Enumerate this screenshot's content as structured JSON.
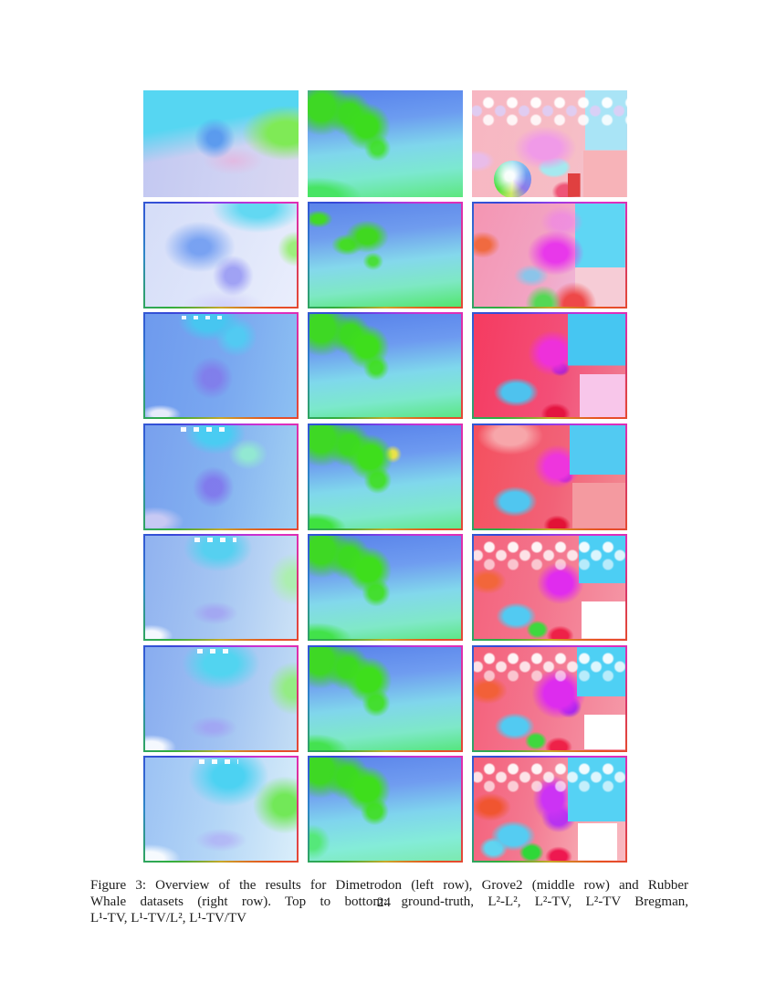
{
  "page": {
    "background": "#ffffff",
    "page_number": "24",
    "caption": {
      "lines": [
        "Figure 3: Overview of the results for Dimetrodon (left row), Grove2 (middle row) and Rubber",
        "Whale datasets (right row). Top to bottom: ground-truth, L²-L², L²-TV, L²-TV Bregman,",
        "L¹-TV, L¹-TV/L², L¹-TV/TV"
      ]
    }
  },
  "figure": {
    "columns": [
      "Dimetrodon",
      "Grove2",
      "Rubber Whale"
    ],
    "rows": [
      "ground-truth",
      "L²-L²",
      "L²-TV",
      "L²-TV Bregman",
      "L¹-TV",
      "L¹-TV/L²",
      "L¹-TV/TV"
    ],
    "frame_gradient": "conic-gradient(from 0deg, #8a3ce8 0deg, #e02cc8 45deg, #d8356e 90deg, #e85020 135deg, #c8a828 180deg, #2fae3e 225deg, #2e86c8 270deg, #3448d8 315deg, #8a3ce8 360deg)",
    "cells": [
      {
        "name": "flow-image-dimetrodon-ground-truth",
        "dataset": "Dimetrodon",
        "method": "ground-truth",
        "framed": false,
        "bg": "radial-gradient(circle at 46% 45%, rgba(88,152,238,0.95) 0%, rgba(88,152,238,0.95) 7%, rgba(88,152,238,0) 20%), radial-gradient(ellipse 42% 38% at 92% 40%, #7fea56 0%, #7fea56 28%, rgba(127,234,86,0) 68%), linear-gradient(170deg, #56d6f2 32%, rgba(86,214,242,0) 55%), radial-gradient(ellipse 30% 20% at 58% 66%, rgba(238,170,214,0.6) 0%, rgba(238,170,214,0) 65%), linear-gradient(100deg, #c2c7f1 0%, #cdd1f3 50%, #dad7f2 100%)",
        "overlays": []
      },
      {
        "name": "flow-image-grove2-ground-truth",
        "dataset": "Grove2",
        "method": "ground-truth",
        "framed": false,
        "bg": "radial-gradient(circle at 38% 34%, #3cdc1e 0%, #3cdc1e 9%, rgba(60,220,30,0) 20%), radial-gradient(circle at 27% 22%, #3cd922 0%, #3cd922 7%, rgba(60,217,34,0) 16%), radial-gradient(circle at 9% 16%, #3ed824 0%, #3ed824 8%, rgba(62,216,36,0) 17%), radial-gradient(circle at 45% 54%, #46e03c 0%, #46e03c 6%, rgba(70,224,60,0) 13%), radial-gradient(ellipse 40% 26% at 6% 100%, #47e463 0%, #47e463 35%, rgba(71,228,99,0) 72%), linear-gradient(174deg, #5580ec 0%, #6c9cf0 30%, #7fd6ec 54%, #7ce8d0 76%, #5ce77e 100%)",
        "overlays": []
      },
      {
        "name": "flow-image-rubberwhale-ground-truth",
        "dataset": "Rubber Whale",
        "method": "ground-truth",
        "framed": false,
        "bg": "radial-gradient(circle, rgba(255,255,255,0.95) 0%, rgba(255,255,255,0.95) 32%, rgba(255,255,255,0) 44%) 5px 5px/26px 17px repeat-x, radial-gradient(circle, rgba(222,206,246,0.9) 0%, rgba(222,206,246,0.9) 32%, rgba(222,206,246,0) 44%) 18px 14px/26px 17px repeat-x, radial-gradient(circle, rgba(255,255,255,0.85) 0%, rgba(255,255,255,0.85) 32%, rgba(255,255,255,0) 44%) 5px 24px/26px 17px repeat-x, linear-gradient(#a9e4f6, #a9e4f6) 100% 0/27% 56% no-repeat, linear-gradient(#f7b3b8, #f7b3b8) 100% 100%/28% 44% no-repeat, linear-gradient(#e04040, #e04040) 67% 100%/8% 22% no-repeat, radial-gradient(ellipse 26% 26% at 47% 54%, #f09ae8 0%, #f09ae8 38%, rgba(240,154,232,0) 78%), radial-gradient(ellipse 15% 14% at 53% 72%, #a5e9ef 0%, #a5e9ef 52%, rgba(165,233,239,0) 72%), radial-gradient(ellipse 11% 13% at 60% 95%, #ee5577 0%, #ee5577 48%, rgba(238,85,119,0) 78%), radial-gradient(ellipse 15% 13% at 3% 66%, #e9bce9 0%, #e9bce9 45%, rgba(233,188,233,0) 78%), linear-gradient(100deg, #f7b6c2 0%, #f6bdc5 60%, #f3c4d0 100%)",
        "overlays": [
          {
            "name": "flow-color-wheel",
            "style": "left:14%; top:66%; width:24%; height:35%; border-radius:50%; background: radial-gradient(circle at 42% 42%, rgba(255,255,255,0.95) 0%, rgba(255,255,255,0.95) 15%, rgba(255,255,255,0) 55%), conic-gradient(from 0deg, #9adef0 0deg, #6f9bf0 70deg, #8f7ae8 130deg, #cde86a 185deg, #55e03a 235deg, #3fe05a 275deg, #8fe8c8 325deg, #9adef0 360deg)"
          }
        ]
      },
      {
        "name": "flow-image-dimetrodon-l2-l2",
        "dataset": "Dimetrodon",
        "method": "L²-L²",
        "framed": true,
        "bg": "radial-gradient(ellipse 42% 34% at 74% 4%, #62d8f2 0%, #62d8f2 28%, rgba(98,216,242,0) 72%), radial-gradient(ellipse 38% 40% at 36% 42%, rgba(96,146,240,0.8) 0%, rgba(96,146,240,0.8) 18%, rgba(96,146,240,0) 62%), radial-gradient(circle at 58% 70%, rgba(132,132,242,0.7) 0%, rgba(132,132,242,0.7) 7%, rgba(132,132,242,0) 18%), radial-gradient(circle at 99% 44%, #9dee7c 0%, #9dee7c 4%, rgba(157,238,124,0) 11%), radial-gradient(ellipse 40% 24% at 52% 100%, rgba(192,184,248,0.5) 0%, rgba(192,184,248,0) 68%), linear-gradient(115deg, #d5ddf8 0%, #dee5fa 50%, #eaeefc 100%)",
        "overlays": []
      },
      {
        "name": "flow-image-grove2-l2-l2",
        "dataset": "Grove2",
        "method": "L²-L²",
        "framed": true,
        "bg": "radial-gradient(ellipse 20% 22% at 38% 32%, #40d820 0%, #40d820 32%, rgba(64,216,32,0) 72%), radial-gradient(ellipse 15% 15% at 25% 40%, #44dc26 0%, #44dc26 30%, rgba(68,220,38,0) 70%), radial-gradient(ellipse 13% 12% at 6% 15%, #42da24 0%, #42da24 32%, rgba(66,218,36,0) 72%), radial-gradient(ellipse 10% 13% at 42% 56%, #4ade3a 0%, #4ade3a 28%, rgba(74,222,58,0) 68%), linear-gradient(174deg, #5b84ea 0%, #6f9cee 30%, #84d8ec 56%, #7ee8c4 78%, #52e66e 100%)",
        "overlays": []
      },
      {
        "name": "flow-image-rubberwhale-l2-l2",
        "dataset": "Rubber Whale",
        "method": "L²-L²",
        "framed": true,
        "bg": "radial-gradient(ellipse 15% 17% at 6% 40%, #f06a40 0%, #f06a40 32%, rgba(240,106,64,0) 76%), radial-gradient(ellipse 24% 28% at 54% 48%, #e838ea 0%, #e838ea 32%, rgba(232,56,234,0) 78%), radial-gradient(ellipse 18% 20% at 58% 18%, rgba(238,130,232,0.65) 0%, rgba(238,130,232,0.65) 35%, rgba(238,130,232,0) 78%), radial-gradient(ellipse 16% 15% at 38% 70%, rgba(122,202,240,0.85) 0%, rgba(122,202,240,0.85) 28%, rgba(122,202,240,0) 72%), radial-gradient(circle at 46% 97%, #55d855 0%, #55d855 6%, rgba(85,216,85,0) 14%), radial-gradient(circle at 66% 98%, #ee4848 0%, #ee4848 7%, rgba(238,72,72,0) 16%), linear-gradient(#5fd6f4, #5fd6f4) 100% 0/33% 62% no-repeat, linear-gradient(#f6ccd6, #f6ccd6) 100% 100%/33% 38% no-repeat, linear-gradient(110deg, #f495b2 0%, #f2a3c2 45%, #eebbdd 80%, #ecc9ea 100%)",
        "overlays": []
      },
      {
        "name": "flow-image-dimetrodon-l2-tv",
        "dataset": "Dimetrodon",
        "method": "L²-TV",
        "framed": true,
        "bg": "repeating-linear-gradient(90deg, rgba(255,255,255,0.9) 0 5px, rgba(255,255,255,0) 5px 13px) 34% 2px/30% 4px no-repeat, radial-gradient(ellipse 26% 26% at 42% 6%, #47c6f0 0%, #47c6f0 38%, rgba(71,198,240,0) 78%), radial-gradient(ellipse 20% 28% at 60% 22%, #52caf2 0%, #52caf2 28%, rgba(82,202,242,0) 70%), radial-gradient(circle at 44% 62%, rgba(130,120,234,0.85) 0%, rgba(130,120,234,0.85) 8%, rgba(130,120,234,0) 20%), radial-gradient(ellipse 20% 13% at 10% 97%, rgba(236,239,251,0.95) 0%, rgba(236,239,251,0.95) 28%, rgba(236,239,251,0) 68%), linear-gradient(100deg, #6e9aee 0%, #7aa8f0 55%, #8dc0f2 100%)",
        "overlays": []
      },
      {
        "name": "flow-image-grove2-l2-tv",
        "dataset": "Grove2",
        "method": "L²-TV",
        "framed": true,
        "bg": "radial-gradient(circle at 38% 32%, #3ede1c 0%, #3ede1c 9%, rgba(62,222,28,0) 19%), radial-gradient(circle at 27% 20%, #3cd922 0%, #3cd922 7%, rgba(60,217,34,0) 15%), radial-gradient(circle at 8% 14%, #3ed824 0%, #3ed824 8%, rgba(62,216,36,0) 17%), radial-gradient(circle at 44% 52%, #44de30 0%, #44de30 6%, rgba(68,222,48,0) 13%), linear-gradient(174deg, #5680ea 0%, #6d9af0 32%, #7fd8ec 58%, #7ce8cc 80%, #5ae684 100%)",
        "overlays": []
      },
      {
        "name": "flow-image-rubberwhale-l2-tv",
        "dataset": "Rubber Whale",
        "method": "L²-TV",
        "framed": true,
        "bg": "linear-gradient(#46c6f2, #46c6f2) 100% 0/38% 50% no-repeat, linear-gradient(#f8c6ea, #f8c6ea) 100% 100%/30% 42% no-repeat, radial-gradient(ellipse 20% 27% at 52% 38%, #ee30da 0%, #ee30da 42%, rgba(238,48,218,0) 82%), radial-gradient(ellipse 8% 9% at 57% 53%, #aa22cc 0%, #aa22cc 45%, rgba(170,34,204,0) 82%), radial-gradient(ellipse 19% 18% at 28% 76%, #4ec2ee 0%, #4ec2ee 48%, rgba(78,194,238,0) 78%), radial-gradient(ellipse 12% 13% at 54% 97%, #e41440 0%, #e41440 48%, rgba(228,20,64,0) 82%), linear-gradient(100deg, #f53b60 0%, #f34f78 55%, #ef7d92 100%)",
        "overlays": []
      },
      {
        "name": "flow-image-dimetrodon-l2-tv-bregman",
        "dataset": "Dimetrodon",
        "method": "L²-TV Bregman",
        "framed": true,
        "bg": "repeating-linear-gradient(90deg, rgba(255,255,255,0.95) 0 6px, rgba(255,255,255,0) 6px 14px) 36% 2px/34% 5px no-repeat, radial-gradient(ellipse 26% 26% at 46% 8%, #4accf2 0%, #4accf2 38%, rgba(74,204,242,0) 78%), radial-gradient(ellipse 19% 22% at 68% 28%, #92e8d2 0%, #92e8d2 22%, rgba(146,232,210,0) 68%), radial-gradient(circle at 45% 60%, rgba(128,114,236,0.85) 0%, rgba(128,114,236,0.85) 8%, rgba(128,114,236,0) 20%), radial-gradient(ellipse 28% 20% at 6% 93%, #c7c9f4 0%, #c7c9f4 28%, rgba(199,201,244,0) 70%), linear-gradient(100deg, #78a0ee 0%, #84b2f0 50%, #a2d0f3 100%)",
        "overlays": []
      },
      {
        "name": "flow-image-grove2-l2-tv-bregman",
        "dataset": "Grove2",
        "method": "L²-TV Bregman",
        "framed": true,
        "bg": "radial-gradient(circle at 40% 31%, #3ede1c 0%, #3ede1c 10%, rgba(62,222,28,0) 20%), radial-gradient(circle at 26% 19%, #3cd922 0%, #3cd922 7%, rgba(60,217,34,0) 16%), radial-gradient(circle at 8% 13%, #3ed824 0%, #3ed824 8%, rgba(62,216,36,0) 17%), radial-gradient(circle at 45% 53%, #44de30 0%, #44de30 7%, rgba(68,222,48,0) 14%), radial-gradient(circle at 55% 28%, #e8e24a 0%, #e8e24a 3%, rgba(232,226,74,0) 8%), radial-gradient(ellipse 28% 20% at 4% 99%, #3fe23f 0%, #3fe23f 38%, rgba(63,226,63,0) 72%), linear-gradient(174deg, #5680ea 0%, #6d9af0 32%, #80d8ec 58%, #7ee8cc 82%, #62e88e 100%)",
        "overlays": []
      },
      {
        "name": "flow-image-rubberwhale-l2-tv-bregman",
        "dataset": "Rubber Whale",
        "method": "L²-TV Bregman",
        "framed": true,
        "bg": "radial-gradient(ellipse 28% 24% at 24% 10%, #f7a6aa 0%, #f7a6aa 38%, rgba(247,166,170,0) 78%), linear-gradient(#52caf2, #52caf2) 100% 0/37% 48% no-repeat, linear-gradient(#f49aa0, #f49aa0) 100% 100%/35% 44% no-repeat, radial-gradient(ellipse 19% 26% at 55% 40%, #ee35dd 0%, #ee35dd 42%, rgba(238,53,221,0) 82%), radial-gradient(ellipse 7% 8% at 60% 50%, #a21ecc 0%, #a21ecc 45%, rgba(162,30,204,0) 82%), radial-gradient(ellipse 19% 19% at 27% 74%, #50c6f0 0%, #50c6f0 48%, rgba(80,198,240,0) 78%), radial-gradient(ellipse 11% 12% at 55% 97%, #e21236 0%, #e21236 48%, rgba(226,18,54,0) 82%), linear-gradient(100deg, #f4505e 0%, #f26278 55%, #f28a92 100%)",
        "overlays": []
      },
      {
        "name": "flow-image-dimetrodon-l1-tv",
        "dataset": "Dimetrodon",
        "method": "L¹-TV",
        "framed": true,
        "bg": "repeating-linear-gradient(90deg, rgba(255,255,255,0.95) 0 6px, rgba(255,255,255,0) 6px 14px) 45% 2px/28% 5px no-repeat, radial-gradient(ellipse 30% 30% at 48% 12%, #56d0f0 0%, #56d0f0 32%, rgba(86,208,240,0) 76%), radial-gradient(ellipse 24% 36% at 98% 42%, #aceeb0 0%, #aceeb0 22%, rgba(172,238,176,0) 70%), radial-gradient(ellipse 23% 17% at 46% 75%, rgba(160,148,242,0.6) 0%, rgba(160,148,242,0.6) 22%, rgba(160,148,242,0) 66%), radial-gradient(ellipse 20% 15% at 4% 97%, rgba(249,251,255,0.95) 0%, rgba(249,251,255,0.95) 32%, rgba(249,251,255,0) 72%), linear-gradient(100deg, #90b2f0 0%, #a6c6f2 50%, #cce2f6 100%)",
        "overlays": []
      },
      {
        "name": "flow-image-grove2-l1-tv",
        "dataset": "Grove2",
        "method": "L¹-TV",
        "framed": true,
        "bg": "radial-gradient(circle at 39% 33%, #3ede1c 0%, #3ede1c 10%, rgba(62,222,28,0) 20%), radial-gradient(circle at 26% 21%, #3cd922 0%, #3cd922 7%, rgba(60,217,34,0) 16%), radial-gradient(circle at 8% 14%, #3ed824 0%, #3ed824 8%, rgba(62,216,36,0) 17%), radial-gradient(circle at 44% 55%, #44de30 0%, #44de30 7%, rgba(68,222,48,0) 14%), radial-gradient(ellipse 32% 22% at 5% 100%, #42e24a 0%, #42e24a 32%, rgba(66,226,74,0) 72%), linear-gradient(174deg, #5882ea 0%, #6f9cf0 32%, #82d8ec 58%, #80e8c8 82%, #5ee688 100%)",
        "overlays": []
      },
      {
        "name": "flow-image-rubberwhale-l1-tv",
        "dataset": "Rubber Whale",
        "method": "L¹-TV",
        "framed": true,
        "bg": "radial-gradient(circle, rgba(255,255,255,0.92) 0%, rgba(255,255,255,0.92) 32%, rgba(255,255,255,0) 44%) 4px 4px/26px 17px repeat-x, radial-gradient(circle, rgba(255,255,255,0.8) 0%, rgba(255,255,255,0.8) 32%, rgba(255,255,255,0) 44%) 17px 13px/26px 17px repeat-x, radial-gradient(circle, rgba(255,255,255,0.6) 0%, rgba(255,255,255,0.6) 32%, rgba(255,255,255,0) 44%) 4px 23px/26px 17px repeat-x, linear-gradient(#4ccef4, #4ccef4) 100% 0/31% 46% no-repeat, linear-gradient(#ffffff, #ffffff) 100% 100%/29% 36% no-repeat, radial-gradient(ellipse 16% 16% at 9% 44%, #f2663a 0%, #f2663a 38%, rgba(242,102,58,0) 78%), radial-gradient(ellipse 19% 25% at 57% 46%, #e02cee 0%, #e02cee 42%, rgba(224,44,238,0) 82%), radial-gradient(ellipse 17% 17% at 28% 78%, #52caf2 0%, #52caf2 48%, rgba(82,202,242,0) 78%), radial-gradient(ellipse 9% 11% at 42% 91%, #3ed83e 0%, #3ed83e 50%, rgba(62,216,62,0) 82%), radial-gradient(ellipse 11% 12% at 57% 97%, #ee2148 0%, #ee2148 48%, rgba(238,33,72,0) 82%), linear-gradient(100deg, #f4627c 0%, #f3748c 45%, #f597a6 100%)",
        "overlays": []
      },
      {
        "name": "flow-image-dimetrodon-l1-tv-l2",
        "dataset": "Dimetrodon",
        "method": "L¹-TV/L²",
        "framed": true,
        "bg": "repeating-linear-gradient(90deg, rgba(255,255,255,0.95) 0 6px, rgba(255,255,255,0) 6px 14px) 45% 2px/24% 5px no-repeat, radial-gradient(ellipse 34% 34% at 50% 16%, #52d4f0 0%, #52d4f0 32%, rgba(82,212,240,0) 76%), radial-gradient(ellipse 24% 36% at 98% 40%, #94ec84 0%, #94ec84 25%, rgba(148,236,132,0) 72%), radial-gradient(ellipse 24% 17% at 45% 78%, rgba(162,150,244,0.6) 0%, rgba(162,150,244,0.6) 22%, rgba(162,150,244,0) 66%), radial-gradient(ellipse 22% 16% at 4% 97%, rgba(250,252,255,0.95) 0%, rgba(250,252,255,0.95) 35%, rgba(250,252,255,0) 75%), linear-gradient(100deg, #88acf0 0%, #a0c2f2 52%, #c4def5 100%)",
        "overlays": []
      },
      {
        "name": "flow-image-grove2-l1-tv-l2",
        "dataset": "Grove2",
        "method": "L¹-TV/L²",
        "framed": true,
        "bg": "radial-gradient(circle at 39% 32%, #3ede1c 0%, #3ede1c 10%, rgba(62,222,28,0) 20%), radial-gradient(circle at 25% 20%, #3cd922 0%, #3cd922 7%, rgba(60,217,34,0) 16%), radial-gradient(circle at 7% 13%, #3ed824 0%, #3ed824 8%, rgba(62,216,36,0) 17%), radial-gradient(circle at 44% 54%, #44de30 0%, #44de30 7%, rgba(68,222,48,0) 14%), radial-gradient(ellipse 30% 22% at 4% 100%, #44e250 0%, #44e250 32%, rgba(68,226,80,0) 72%), linear-gradient(174deg, #5882ea 0%, #6f9cf0 30%, #80d6ec 56%, #7ee8c8 80%, #56e67e 100%)",
        "overlays": []
      },
      {
        "name": "flow-image-rubberwhale-l1-tv-l2",
        "dataset": "Rubber Whale",
        "method": "L¹-TV/L²",
        "framed": true,
        "bg": "radial-gradient(circle, rgba(255,255,255,0.92) 0%, rgba(255,255,255,0.92) 32%, rgba(255,255,255,0) 44%) 4px 4px/26px 17px repeat-x, radial-gradient(circle, rgba(255,255,255,0.8) 0%, rgba(255,255,255,0.8) 32%, rgba(255,255,255,0) 44%) 17px 13px/26px 17px repeat-x, radial-gradient(circle, rgba(255,255,255,0.6) 0%, rgba(255,255,255,0.6) 32%, rgba(255,255,255,0) 44%) 4px 23px/26px 17px repeat-x, linear-gradient(#4ed0f4, #4ed0f4) 100% 0/32% 48% no-repeat, linear-gradient(#ffffff, #ffffff) 100% 100%/27% 34% no-repeat, radial-gradient(ellipse 17% 17% at 9% 42%, #f26038 0%, #f26038 38%, rgba(242,96,56,0) 78%), radial-gradient(ellipse 21% 29% at 56% 45%, #dd2cee 0%, #dd2cee 45%, rgba(221,44,238,0) 85%), radial-gradient(ellipse 10% 13% at 63% 58%, #9922ee 0%, #9922ee 42%, rgba(153,34,238,0) 82%), radial-gradient(ellipse 17% 17% at 27% 77%, #52caf2 0%, #52caf2 48%, rgba(82,202,242,0) 78%), radial-gradient(ellipse 9% 11% at 41% 91%, #3ed83e 0%, #3ed83e 50%, rgba(62,216,62,0) 82%), radial-gradient(ellipse 11% 12% at 56% 97%, #ee2148 0%, #ee2148 48%, rgba(238,33,72,0) 82%), linear-gradient(100deg, #f4607a 0%, #f37790 45%, #f59aa8 100%)",
        "overlays": []
      },
      {
        "name": "flow-image-dimetrodon-l1-tv-tv",
        "dataset": "Dimetrodon",
        "method": "L¹-TV/TV",
        "framed": true,
        "bg": "repeating-linear-gradient(90deg, rgba(255,255,255,0.95) 0 6px, rgba(255,255,255,0) 6px 14px) 48% 2px/26% 5px no-repeat, radial-gradient(ellipse 36% 40% at 55% 18%, #4cd2f2 0%, #4cd2f2 28%, rgba(76,210,242,0) 74%), radial-gradient(ellipse 30% 40% at 92% 46%, #72e858 0%, #72e858 25%, rgba(114,232,88,0) 70%), radial-gradient(ellipse 26% 17% at 50% 80%, rgba(174,160,246,0.55) 0%, rgba(174,160,246,0.55) 22%, rgba(174,160,246,0) 66%), radial-gradient(ellipse 26% 18% at 3% 98%, rgba(251,253,255,0.95) 0%, rgba(251,253,255,0.95) 36%, rgba(251,253,255,0) 78%), linear-gradient(100deg, #9cc2f4 0%, #b4d6f6 50%, #daeefa 100%)",
        "overlays": []
      },
      {
        "name": "flow-image-grove2-l1-tv-tv",
        "dataset": "Grove2",
        "method": "L¹-TV/TV",
        "framed": true,
        "bg": "radial-gradient(circle at 38% 31%, #3ede1c 0%, #3ede1c 10%, rgba(62,222,28,0) 20%), radial-gradient(circle at 25% 19%, #3cd922 0%, #3cd922 7%, rgba(60,217,34,0) 16%), radial-gradient(circle at 7% 12%, #3ed824 0%, #3ed824 8%, rgba(62,216,36,0) 17%), radial-gradient(circle at 43% 52%, #44de30 0%, #44de30 7%, rgba(68,222,48,0) 14%), radial-gradient(ellipse 18% 26% at 2% 82%, #55e87a 0%, #55e87a 26%, rgba(85,232,122,0) 66%), linear-gradient(174deg, #5a84ea 0%, #709cf0 30%, #7fd4ee 55%, #84ecd8 80%, #7ceab0 100%)",
        "overlays": []
      },
      {
        "name": "flow-image-rubberwhale-l1-tv-tv",
        "dataset": "Rubber Whale",
        "method": "L¹-TV/TV",
        "framed": true,
        "bg": "radial-gradient(circle, rgba(255,255,255,0.92) 0%, rgba(255,255,255,0.92) 32%, rgba(255,255,255,0) 44%) 4px 4px/26px 17px repeat-x, radial-gradient(circle, rgba(255,255,255,0.8) 0%, rgba(255,255,255,0.8) 32%, rgba(255,255,255,0) 44%) 17px 13px/26px 17px repeat-x, radial-gradient(circle, rgba(255,255,255,0.65) 0%, rgba(255,255,255,0.65) 32%, rgba(255,255,255,0) 44%) 4px 23px/26px 17px repeat-x, linear-gradient(#55d2f4, #55d2f4) 100% 0/38% 62% no-repeat, linear-gradient(#ffffff, #ffffff) 93% 100%/26% 36% no-repeat, radial-gradient(ellipse 16% 28% at 52% 40%, #cc33f4 0%, #cc33f4 42%, rgba(204,51,244,0) 82%), radial-gradient(ellipse 14% 18% at 56% 58%, #b832f0 0%, #b832f0 42%, rgba(184,50,240,0) 82%), radial-gradient(ellipse 17% 17% at 11% 48%, #f05530 0%, #f05530 38%, rgba(240,85,48,0) 80%), radial-gradient(ellipse 19% 19% at 26% 76%, #55ccf2 0%, #55ccf2 48%, rgba(85,204,242,0) 78%), radial-gradient(ellipse 12% 14% at 13% 88%, #60d4f0 0%, #60d4f0 45%, rgba(96,212,240,0) 78%), radial-gradient(ellipse 10% 12% at 38% 92%, #2ed838 0%, #2ed838 50%, rgba(46,216,56,0) 82%), radial-gradient(ellipse 11% 12% at 56% 96%, #ee1850 0%, #ee1850 48%, rgba(238,24,80,0) 82%), linear-gradient(100deg, #f4607a 0%, #f37a92 40%, #f7a3ae 72%, #f8bac2 100%)",
        "overlays": []
      }
    ]
  }
}
